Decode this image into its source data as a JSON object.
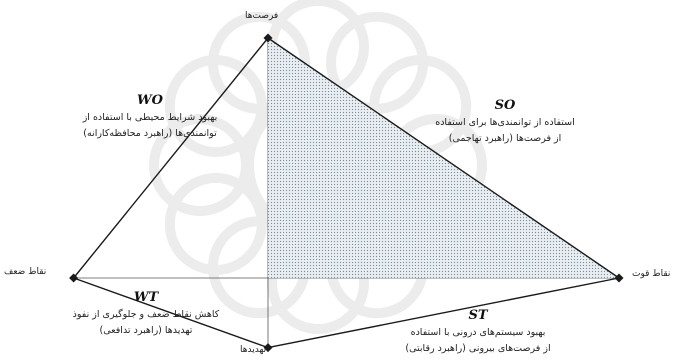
{
  "axes": {
    "opportunities": "فرصت‌ها",
    "threats": "تهدیدها",
    "weaknesses": "نقاط ضعف",
    "strengths": "نقاط قوت"
  },
  "vertices": [
    {
      "key": "opportunities",
      "x": 0,
      "y": 1
    },
    {
      "key": "strengths",
      "x": 1.3,
      "y": 0
    },
    {
      "key": "threats",
      "x": 0,
      "y": -0.29
    },
    {
      "key": "weaknesses",
      "x": -0.72,
      "y": 0
    }
  ],
  "shaded_region": "SO",
  "colors": {
    "outline": "#1a1a1a",
    "axis": "#555555",
    "shade_dot": "#7a8a96",
    "shade_fill": "#e8edf1",
    "watermark": "#ececec"
  },
  "quadrants": {
    "SO": {
      "code": "SO",
      "line1": "استفاده از توانمندی‌ها برای استفاده",
      "line2": "از فرصت‌ها (راهبرد تهاجمی)"
    },
    "WO": {
      "code": "WO",
      "line1": "بهبود شرایط محیطی با استفاده از",
      "line2": "توانمندی‌ها (راهبرد محافظه‌کارانه)"
    },
    "WT": {
      "code": "WT",
      "line1": "کاهش نقاط ضعف و جلوگیری از نفوذ",
      "line2": "تهدیدها (راهبرد تدافعی)"
    },
    "ST": {
      "code": "ST",
      "line1": "بهبود سیستم‌های درونی با استفاده",
      "line2": "از فرصت‌های بیرونی (راهبرد رقابتی)"
    }
  }
}
